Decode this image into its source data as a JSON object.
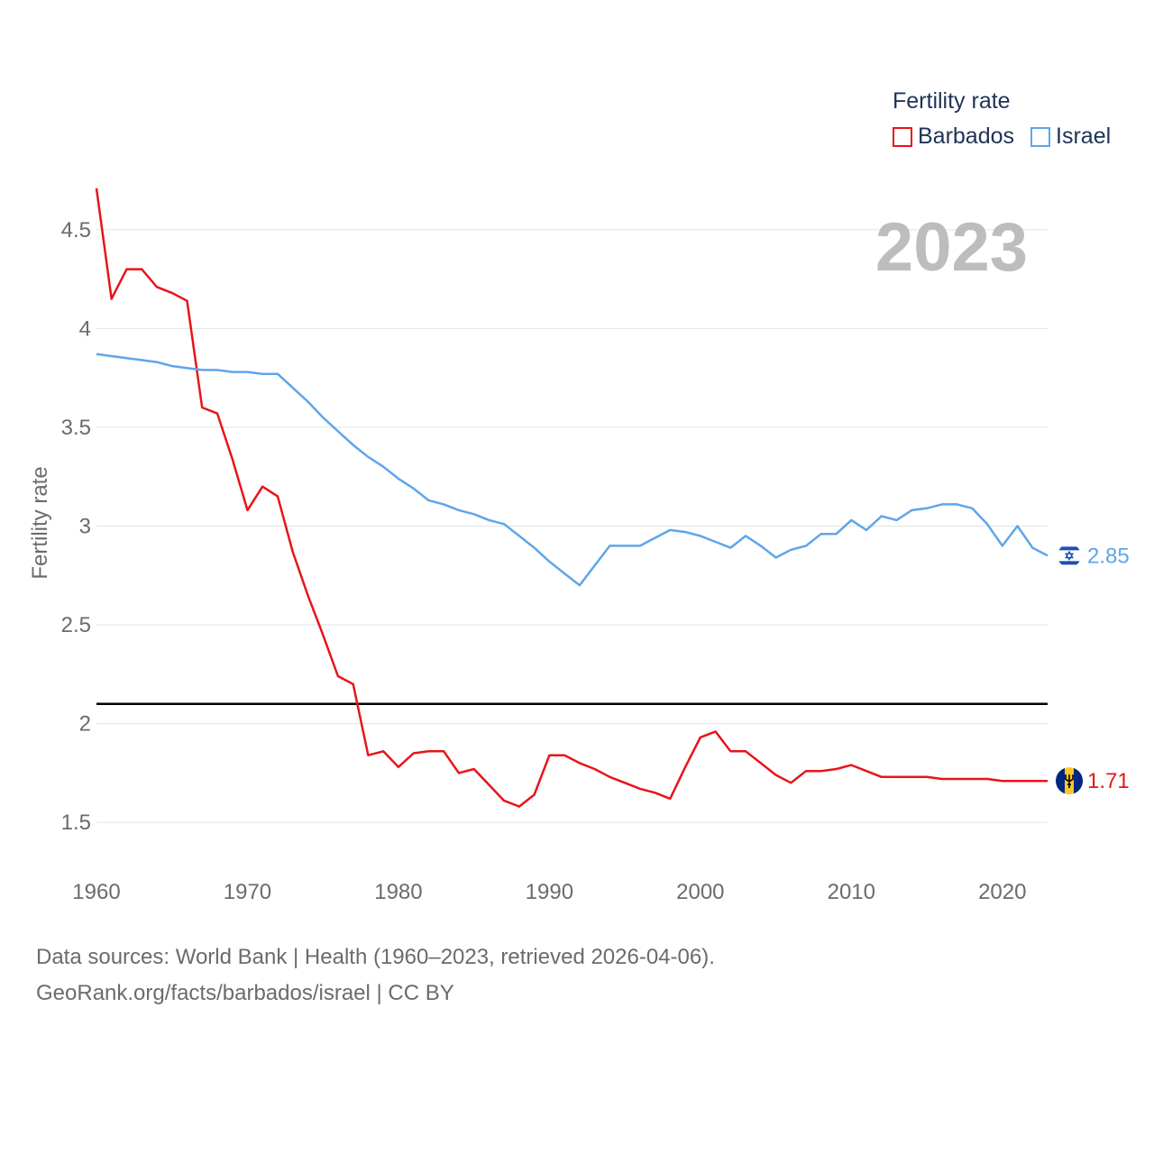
{
  "legend": {
    "title": "Fertility rate",
    "items": [
      {
        "name": "Barbados",
        "color": "#e8141a"
      },
      {
        "name": "Israel",
        "color": "#5fa5ea"
      }
    ]
  },
  "footer": {
    "line1": "Data sources: World Bank | Health (1960–2023, retrieved 2026-04-06).",
    "line2": "GeoRank.org/facts/barbados/israel | CC BY"
  },
  "chart_data": {
    "type": "line",
    "year_label": "2023",
    "ylabel": "Fertility rate",
    "xlabel": "",
    "xlim": [
      1960,
      2023
    ],
    "ylim": [
      1.3,
      4.75
    ],
    "xticks": [
      "1960",
      "1970",
      "1980",
      "1990",
      "2000",
      "2010",
      "2020"
    ],
    "yticks": [
      "1.5",
      "2",
      "2.5",
      "3",
      "3.5",
      "4",
      "4.5"
    ],
    "reference_line": 2.1,
    "x": [
      1960,
      1961,
      1962,
      1963,
      1964,
      1965,
      1966,
      1967,
      1968,
      1969,
      1970,
      1971,
      1972,
      1973,
      1974,
      1975,
      1976,
      1977,
      1978,
      1979,
      1980,
      1981,
      1982,
      1983,
      1984,
      1985,
      1986,
      1987,
      1988,
      1989,
      1990,
      1991,
      1992,
      1993,
      1994,
      1995,
      1996,
      1997,
      1998,
      1999,
      2000,
      2001,
      2002,
      2003,
      2004,
      2005,
      2006,
      2007,
      2008,
      2009,
      2010,
      2011,
      2012,
      2013,
      2014,
      2015,
      2016,
      2017,
      2018,
      2019,
      2020,
      2021,
      2022,
      2023
    ],
    "series": [
      {
        "name": "Barbados",
        "color": "#e8141a",
        "end_label": "1.71",
        "values": [
          4.71,
          4.15,
          4.3,
          4.3,
          4.21,
          4.18,
          4.14,
          3.6,
          3.57,
          3.34,
          3.08,
          3.2,
          3.15,
          2.87,
          2.65,
          2.45,
          2.24,
          2.2,
          1.84,
          1.86,
          1.78,
          1.85,
          1.86,
          1.86,
          1.75,
          1.77,
          1.69,
          1.61,
          1.58,
          1.64,
          1.84,
          1.84,
          1.8,
          1.77,
          1.73,
          1.7,
          1.67,
          1.65,
          1.62,
          1.78,
          1.93,
          1.96,
          1.86,
          1.86,
          1.8,
          1.74,
          1.7,
          1.76,
          1.76,
          1.77,
          1.79,
          1.76,
          1.73,
          1.73,
          1.73,
          1.73,
          1.72,
          1.72,
          1.72,
          1.72,
          1.71,
          1.71,
          1.71,
          1.71
        ]
      },
      {
        "name": "Israel",
        "color": "#5fa5ea",
        "end_label": "2.85",
        "values": [
          3.87,
          3.86,
          3.85,
          3.84,
          3.83,
          3.81,
          3.8,
          3.79,
          3.79,
          3.78,
          3.78,
          3.77,
          3.77,
          3.7,
          3.63,
          3.55,
          3.48,
          3.41,
          3.35,
          3.3,
          3.24,
          3.19,
          3.13,
          3.11,
          3.08,
          3.06,
          3.03,
          3.01,
          2.95,
          2.89,
          2.82,
          2.76,
          2.7,
          2.8,
          2.9,
          2.9,
          2.9,
          2.94,
          2.98,
          2.97,
          2.95,
          2.92,
          2.89,
          2.95,
          2.9,
          2.84,
          2.88,
          2.9,
          2.96,
          2.96,
          3.03,
          2.98,
          3.05,
          3.03,
          3.08,
          3.09,
          3.11,
          3.11,
          3.09,
          3.01,
          2.9,
          3.0,
          2.89,
          2.85
        ]
      }
    ]
  }
}
